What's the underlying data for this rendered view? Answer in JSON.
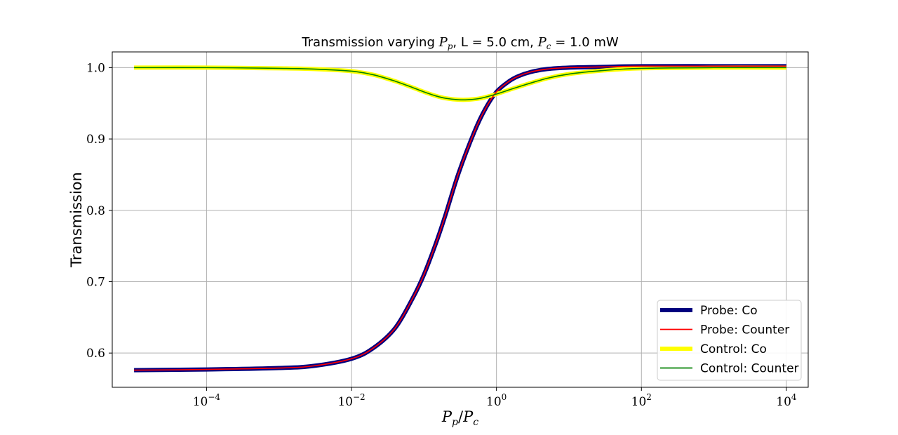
{
  "chart_data": {
    "type": "line",
    "title": {
      "prefix": "Transmission varying ",
      "pp_main": "P",
      "pp_sub": "p",
      "middle": ", L = 5.0 cm, ",
      "pc_main": "P",
      "pc_sub": "c",
      "suffix": " = 1.0 mW"
    },
    "xlabel": {
      "num_main": "P",
      "num_sub": "p",
      "slash": "/",
      "den_main": "P",
      "den_sub": "c"
    },
    "ylabel": "Transmission",
    "xscale": "log",
    "xlim": [
      5e-06,
      20000
    ],
    "ylim": [
      0.552,
      1.022
    ],
    "xticks": [
      {
        "value": 0.0001,
        "base": "10",
        "exp": "−4"
      },
      {
        "value": 0.01,
        "base": "10",
        "exp": "−2"
      },
      {
        "value": 1,
        "base": "10",
        "exp": "0"
      },
      {
        "value": 100,
        "base": "10",
        "exp": "2"
      },
      {
        "value": 10000,
        "base": "10",
        "exp": "4"
      }
    ],
    "yticks": [
      {
        "value": 0.6,
        "label": "0.6"
      },
      {
        "value": 0.7,
        "label": "0.7"
      },
      {
        "value": 0.8,
        "label": "0.8"
      },
      {
        "value": 0.9,
        "label": "0.9"
      },
      {
        "value": 1.0,
        "label": "1.0"
      }
    ],
    "grid": true,
    "legend_position": "bottom-right",
    "series": [
      {
        "name": "Probe: Co",
        "color": "#00007f",
        "style": "thick",
        "x": [
          1e-05,
          0.0001,
          0.001,
          0.003,
          0.01,
          0.02,
          0.04,
          0.07,
          0.1,
          0.15,
          0.2,
          0.3,
          0.5,
          0.7,
          1,
          1.5,
          2,
          3,
          5,
          10,
          30,
          100,
          1000,
          10000
        ],
        "y": [
          0.576,
          0.577,
          0.579,
          0.582,
          0.592,
          0.607,
          0.635,
          0.677,
          0.71,
          0.757,
          0.795,
          0.852,
          0.911,
          0.942,
          0.966,
          0.981,
          0.988,
          0.994,
          0.998,
          1.0,
          1.001,
          1.002,
          1.002,
          1.002
        ]
      },
      {
        "name": "Probe: Counter",
        "color": "#ff0000",
        "style": "thin",
        "x": [
          1e-05,
          0.0001,
          0.001,
          0.003,
          0.01,
          0.02,
          0.04,
          0.07,
          0.1,
          0.15,
          0.2,
          0.3,
          0.5,
          0.7,
          1,
          1.5,
          2,
          3,
          5,
          10,
          30,
          100,
          1000,
          10000
        ],
        "y": [
          0.576,
          0.577,
          0.579,
          0.582,
          0.592,
          0.607,
          0.635,
          0.677,
          0.71,
          0.757,
          0.795,
          0.852,
          0.911,
          0.942,
          0.966,
          0.981,
          0.988,
          0.994,
          0.998,
          1.0,
          1.001,
          1.002,
          1.002,
          1.002
        ]
      },
      {
        "name": "Control: Co",
        "color": "#ffff00",
        "style": "thick",
        "x": [
          1e-05,
          0.0001,
          0.001,
          0.003,
          0.01,
          0.02,
          0.04,
          0.07,
          0.1,
          0.15,
          0.2,
          0.3,
          0.4,
          0.6,
          1,
          2,
          5,
          10,
          30,
          100,
          1000,
          10000
        ],
        "y": [
          1.0,
          1.0,
          0.999,
          0.998,
          0.995,
          0.99,
          0.981,
          0.972,
          0.966,
          0.96,
          0.957,
          0.955,
          0.955,
          0.957,
          0.963,
          0.973,
          0.985,
          0.991,
          0.996,
          0.999,
          1.0,
          1.0
        ]
      },
      {
        "name": "Control: Counter",
        "color": "#008000",
        "style": "thin",
        "x": [
          1e-05,
          0.0001,
          0.001,
          0.003,
          0.01,
          0.02,
          0.04,
          0.07,
          0.1,
          0.15,
          0.2,
          0.3,
          0.4,
          0.6,
          1,
          2,
          5,
          10,
          30,
          100,
          1000,
          10000
        ],
        "y": [
          1.0,
          1.0,
          0.999,
          0.998,
          0.995,
          0.99,
          0.981,
          0.972,
          0.966,
          0.96,
          0.957,
          0.955,
          0.955,
          0.957,
          0.963,
          0.973,
          0.985,
          0.991,
          0.996,
          0.999,
          1.0,
          1.0
        ]
      }
    ]
  }
}
